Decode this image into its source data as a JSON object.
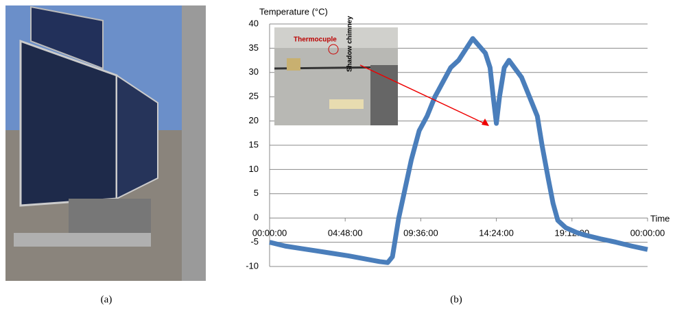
{
  "captions": [
    "(a)",
    "(b)"
  ],
  "chart_data": {
    "type": "line",
    "y_label": "Temperature (°C)",
    "x_label": "Time",
    "annotations": [
      "Thermocuple",
      "Shadow chimney"
    ],
    "x": [
      0,
      1,
      2,
      3,
      4,
      5,
      6,
      7,
      7.5,
      7.8,
      8,
      8.2,
      8.6,
      9,
      9.5,
      10,
      10.5,
      11,
      11.5,
      12,
      12.5,
      12.9,
      13.3,
      13.7,
      14,
      14.2,
      14.4,
      14.6,
      14.9,
      15.2,
      16,
      16.5,
      17,
      17.3,
      17.7,
      18,
      18.3,
      18.8,
      19.5,
      20,
      21,
      22,
      23,
      24
    ],
    "series": [
      {
        "name": "Temperature",
        "color": "#4a7ebb",
        "values": [
          -5,
          -5.8,
          -6.3,
          -6.8,
          -7.3,
          -7.8,
          -8.4,
          -9,
          -9.2,
          -8,
          -4,
          0,
          6,
          12,
          18,
          21,
          25,
          28,
          31,
          32.5,
          35,
          37,
          35.5,
          34,
          31,
          25,
          19.5,
          25,
          31,
          32.5,
          29,
          25,
          21,
          15,
          8,
          3,
          -0.5,
          -2,
          -3,
          -3.5,
          -4.3,
          -5,
          -5.8,
          -6.5
        ]
      }
    ],
    "xlim": [
      0,
      24
    ],
    "xticks": [
      {
        "value": 0,
        "label": "00:00:00"
      },
      {
        "value": 4.8,
        "label": "04:48:00"
      },
      {
        "value": 9.6,
        "label": "09:36:00"
      },
      {
        "value": 14.4,
        "label": "14:24:00"
      },
      {
        "value": 19.2,
        "label": "19:12:00"
      },
      {
        "value": 24,
        "label": "00:00:00"
      }
    ],
    "ylim": [
      -10,
      40
    ],
    "yticks": [
      -10,
      -5,
      0,
      5,
      10,
      15,
      20,
      25,
      30,
      35,
      40
    ],
    "grid": true
  }
}
